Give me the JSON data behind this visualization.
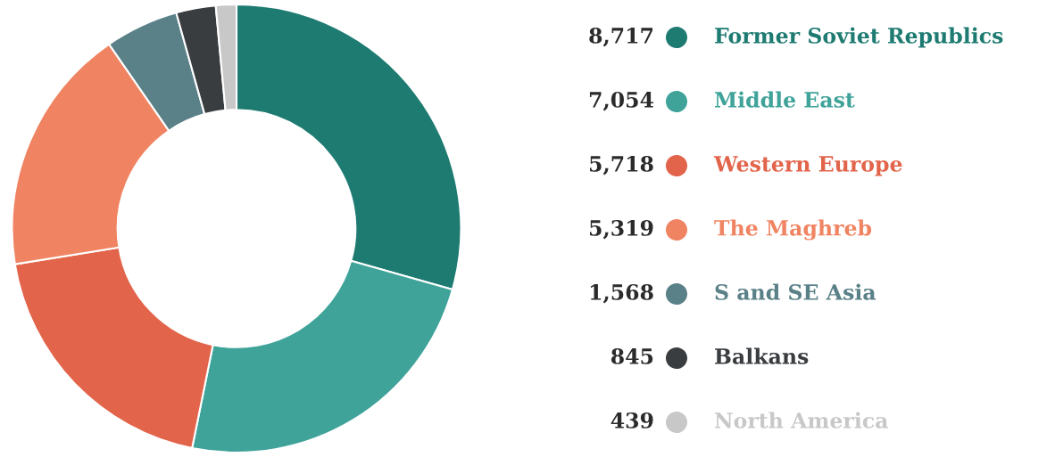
{
  "chart_data": {
    "type": "donut",
    "categories": [
      "Former Soviet Republics",
      "Middle East",
      "Western Europe",
      "The Maghreb",
      "S and SE Asia",
      "Balkans",
      "North America"
    ],
    "values": [
      8717,
      7054,
      5718,
      5319,
      1568,
      845,
      439
    ],
    "value_labels": [
      "8,717",
      "7,054",
      "5,718",
      "5,319",
      "1,568",
      "845",
      "439"
    ],
    "colors": [
      "#1e7b72",
      "#3fa39a",
      "#e2644a",
      "#f08462",
      "#5a8188",
      "#3a3d40",
      "#c8c8c8"
    ],
    "legend": "right"
  }
}
